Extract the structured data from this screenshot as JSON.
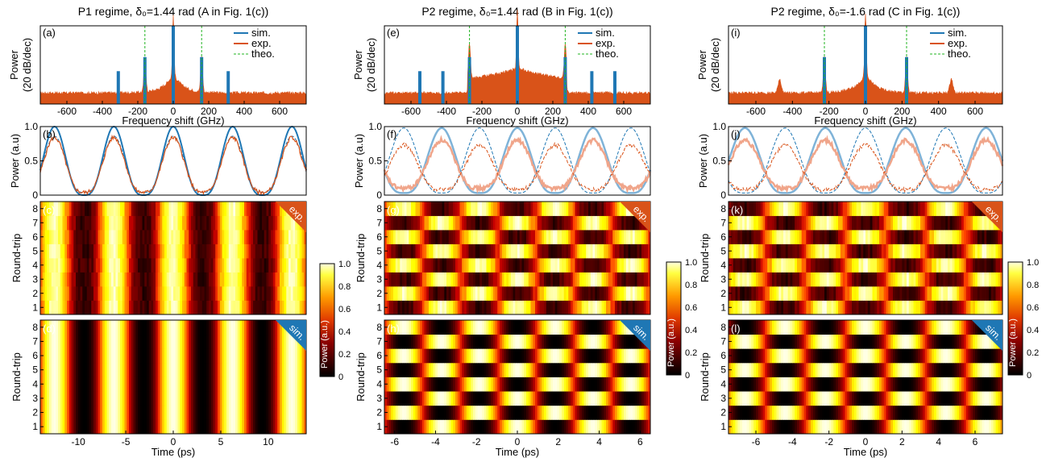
{
  "columns": [
    {
      "title": "P1 regime, δ₀=1.44 rad (A in Fig. 1(c))",
      "spectrum": {
        "label": "(a)",
        "xlim": [
          -750,
          750
        ],
        "xticks": [
          -600,
          -400,
          -200,
          0,
          200,
          400,
          600
        ],
        "xlabel": "Frequency shift (GHz)",
        "ylabel": "Power",
        "ylabel2": "(20 dB/dec)",
        "theo_lines": [
          -160,
          160
        ],
        "sim_lines": [
          -310,
          -160,
          0,
          160,
          310
        ],
        "legend": [
          "sim.",
          "exp.",
          "theo."
        ]
      },
      "profile": {
        "label": "(b)",
        "xlim": [
          -14,
          14
        ],
        "ylim": [
          0,
          1
        ],
        "yticks": [
          0,
          0.5,
          1
        ],
        "yticklabels": [
          "0",
          "0.5",
          "1.0"
        ],
        "ylabel": "Power (a.u)",
        "period": 6.25,
        "phase": 0,
        "sim2": false
      },
      "map_exp": {
        "label": "(c)",
        "tag": "exp.",
        "ylabel": "Round-trip",
        "yticks": [
          1,
          2,
          3,
          4,
          5,
          6,
          7,
          8
        ],
        "period": 6.25,
        "alternate": false
      },
      "map_sim": {
        "label": "(d)",
        "tag": "sim.",
        "ylabel": "Round-trip",
        "yticks": [
          1,
          2,
          3,
          4,
          5,
          6,
          7,
          8
        ],
        "xticks": [
          -10,
          -5,
          0,
          5,
          10
        ],
        "xlabel": "Time (ps)",
        "xlim": [
          -14,
          14
        ],
        "period": 6.25,
        "alternate": false
      }
    },
    {
      "title": "P2 regime, δ₀=1.44 rad (B in Fig. 1(c))",
      "spectrum": {
        "label": "(e)",
        "xlim": [
          -750,
          750
        ],
        "xticks": [
          -600,
          -400,
          -200,
          0,
          200,
          400,
          600
        ],
        "xlabel": "Frequency shift (GHz)",
        "ylabel": "Power",
        "ylabel2": "(20 dB/dec)",
        "theo_lines": [
          -270,
          270
        ],
        "sim_lines": [
          -550,
          -420,
          -270,
          0,
          270,
          420,
          550
        ],
        "legend": [
          "sim.",
          "exp.",
          "theo."
        ]
      },
      "profile": {
        "label": "(f)",
        "xlim": [
          -6.5,
          6.5
        ],
        "ylim": [
          0,
          1
        ],
        "yticks": [
          0,
          0.5,
          1
        ],
        "yticklabels": [
          "0",
          "0.5",
          "1.0"
        ],
        "ylabel": "Power (a.u)",
        "period": 3.7,
        "phase": 0,
        "sim2": true
      },
      "map_exp": {
        "label": "(g)",
        "tag": "exp.",
        "ylabel": "Round-trip",
        "yticks": [
          1,
          2,
          3,
          4,
          5,
          6,
          7,
          8
        ],
        "period": 3.7,
        "alternate": true
      },
      "map_sim": {
        "label": "(h)",
        "tag": "sim.",
        "ylabel": "Round-trip",
        "yticks": [
          1,
          2,
          3,
          4,
          5,
          6,
          7,
          8
        ],
        "xticks": [
          -6,
          -4,
          -2,
          0,
          2,
          4,
          6
        ],
        "xlabel": "Time (ps)",
        "xlim": [
          -6.5,
          6.5
        ],
        "period": 3.7,
        "alternate": true
      }
    },
    {
      "title": "P2 regime, δ₀=-1.6 rad (C in Fig. 1(c))",
      "spectrum": {
        "label": "(i)",
        "xlim": [
          -750,
          750
        ],
        "xticks": [
          -600,
          -400,
          -200,
          0,
          200,
          400,
          600
        ],
        "xlabel": "Frequency shift (GHz)",
        "ylabel": "Power",
        "ylabel2": "(20 dB/dec)",
        "theo_lines": [
          -225,
          225
        ],
        "sim_lines": [
          -225,
          0,
          225
        ],
        "legend": [
          "sim.",
          "exp.",
          "theo."
        ]
      },
      "profile": {
        "label": "(j)",
        "xlim": [
          -7.5,
          7.5
        ],
        "ylim": [
          0,
          1
        ],
        "yticks": [
          0,
          0.5,
          1
        ],
        "yticklabels": [
          "0",
          "0.5",
          "1.0"
        ],
        "ylabel": "Power (a.u)",
        "period": 4.4,
        "phase": 2.2,
        "sim2": true
      },
      "map_exp": {
        "label": "(k)",
        "tag": "exp.",
        "ylabel": "Round-trip",
        "yticks": [
          1,
          2,
          3,
          4,
          5,
          6,
          7,
          8
        ],
        "period": 4.4,
        "alternate": true
      },
      "map_sim": {
        "label": "(l)",
        "tag": "sim.",
        "ylabel": "Round-trip",
        "yticks": [
          1,
          2,
          3,
          4,
          5,
          6,
          7,
          8
        ],
        "xticks": [
          -6,
          -4,
          -2,
          0,
          2,
          4,
          6
        ],
        "xlabel": "Time (ps)",
        "xlim": [
          -7.5,
          7.5
        ],
        "period": 4.4,
        "alternate": true
      }
    }
  ],
  "colorbar": {
    "ticks": [
      "1.0",
      "0.8",
      "0.6",
      "0.4",
      "0.2",
      "0"
    ],
    "label": "Power (a.u.)"
  },
  "colors": {
    "sim": "#1f77b4",
    "exp": "#d95319",
    "theo": "#22b522",
    "sim_light": "#7fb3d8",
    "exp_light": "#f0a58a"
  },
  "chart_data": [
    {
      "type": "line",
      "title": "P1 regime, δ₀=1.44 rad (A in Fig. 1(c))",
      "xlabel": "Frequency shift (GHz)",
      "ylabel": "Power (20 dB/dec)",
      "series": [
        {
          "name": "sim."
        },
        {
          "name": "exp."
        },
        {
          "name": "theo.",
          "x": [
            -160,
            160
          ]
        }
      ]
    },
    {
      "type": "line",
      "title": "P2 regime, δ₀=1.44 rad (B in Fig. 1(c))",
      "xlabel": "Frequency shift (GHz)",
      "ylabel": "Power (20 dB/dec)",
      "series": [
        {
          "name": "sim."
        },
        {
          "name": "exp."
        },
        {
          "name": "theo.",
          "x": [
            -270,
            270
          ]
        }
      ]
    },
    {
      "type": "line",
      "title": "P2 regime, δ₀=-1.6 rad (C in Fig. 1(c))",
      "xlabel": "Frequency shift (GHz)",
      "ylabel": "Power (20 dB/dec)",
      "series": [
        {
          "name": "sim."
        },
        {
          "name": "exp."
        },
        {
          "name": "theo.",
          "x": [
            -225,
            225
          ]
        }
      ]
    },
    {
      "type": "heatmap",
      "xlabel": "Time (ps)",
      "ylabel": "Round-trip",
      "y": [
        1,
        2,
        3,
        4,
        5,
        6,
        7,
        8
      ],
      "colorbar_label": "Power (a.u.)",
      "zlim": [
        0,
        1
      ]
    }
  ]
}
